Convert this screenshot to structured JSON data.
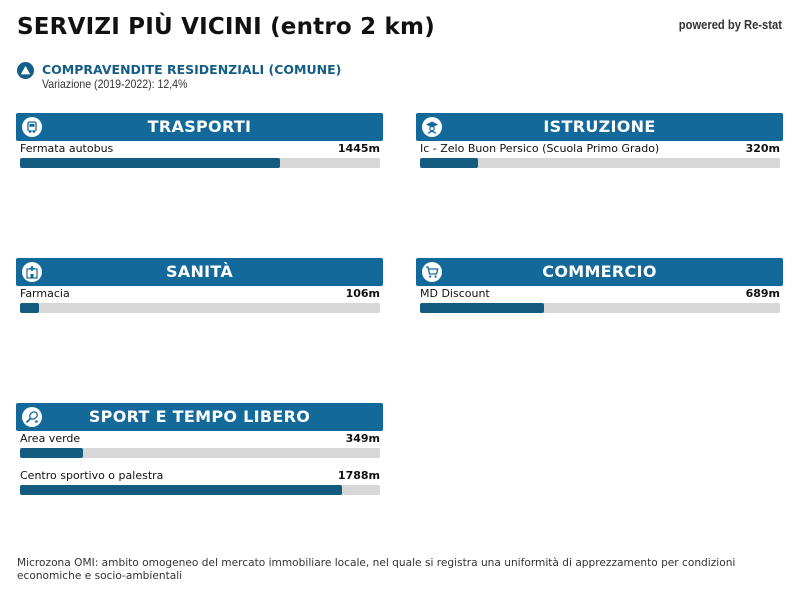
{
  "header": {
    "title": "SERVIZI PIÙ VICINI (entro 2 km)",
    "powered_by": "powered by Re-stat"
  },
  "trend": {
    "icon": "triangle-up-icon",
    "title": "COMPRAVENDITE RESIDENZIALI (COMUNE)",
    "subtitle": "Variazione (2019-2022): 12,4%"
  },
  "colors": {
    "header_bg": "#14699b",
    "bar_fill": "#145b80",
    "bar_track": "#d7d7d7",
    "accent_text": "#145d85"
  },
  "max_distance_m": 2000,
  "categories": [
    {
      "title": "TRASPORTI",
      "icon": "bus-icon",
      "items": [
        {
          "name": "Fermata autobus",
          "distance": "1445m",
          "distance_m": 1445
        }
      ]
    },
    {
      "title": "ISTRUZIONE",
      "icon": "student-icon",
      "items": [
        {
          "name": "Ic - Zelo Buon Persico (Scuola Primo Grado)",
          "distance": "320m",
          "distance_m": 320
        }
      ]
    },
    {
      "title": "SANITÀ",
      "icon": "hospital-icon",
      "items": [
        {
          "name": "Farmacia",
          "distance": "106m",
          "distance_m": 106
        }
      ]
    },
    {
      "title": "COMMERCIO",
      "icon": "shopping-cart-icon",
      "items": [
        {
          "name": "MD Discount",
          "distance": "689m",
          "distance_m": 689
        }
      ]
    },
    {
      "title": "SPORT E TEMPO LIBERO",
      "icon": "tennis-icon",
      "items": [
        {
          "name": "Area verde",
          "distance": "349m",
          "distance_m": 349
        },
        {
          "name": "Centro sportivo o palestra",
          "distance": "1788m",
          "distance_m": 1788
        }
      ]
    }
  ],
  "footnote": "Microzona OMI: ambito omogeneo del mercato immobiliare locale, nel quale si registra una uniformità di apprezzamento per condizioni economiche e socio-ambientali"
}
